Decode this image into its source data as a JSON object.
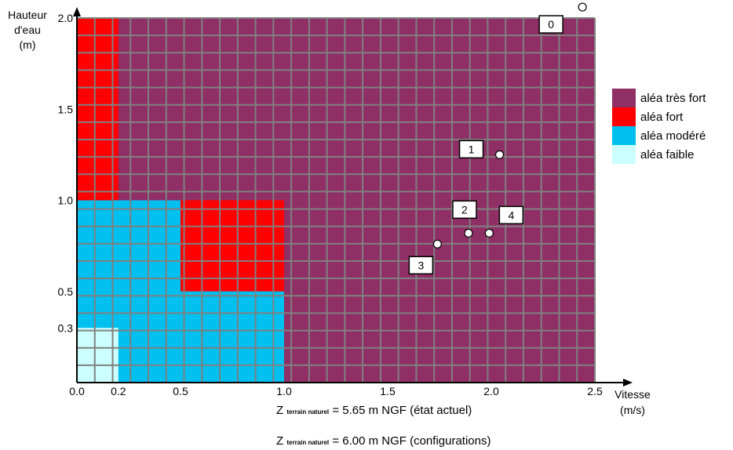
{
  "chart_data": {
    "type": "heatmap",
    "xlabel": "Vitesse\n(m/s)",
    "ylabel": "Hauteur\nd'eau\n(m)",
    "xlim": [
      0,
      2.5
    ],
    "ylim": [
      0,
      2.0
    ],
    "x_ticks": [
      "0.0",
      "0.2",
      "0.5",
      "1.0",
      "1.5",
      "2.0",
      "2.5"
    ],
    "x_tick_values": [
      0.0,
      0.2,
      0.5,
      1.0,
      1.5,
      2.0,
      2.5
    ],
    "y_ticks": [
      "0.3",
      "0.5",
      "1.0",
      "1.5",
      "2.0"
    ],
    "y_tick_values": [
      0.3,
      0.5,
      1.0,
      1.5,
      2.0
    ],
    "zones": [
      {
        "label": "aléa très fort",
        "color": "#8f2f66",
        "x": [
          0,
          2.5
        ],
        "y": [
          0,
          2.0
        ]
      },
      {
        "label": "aléa fort",
        "color": "#ff0000",
        "x": [
          0,
          0.2
        ],
        "y": [
          1.0,
          2.0
        ]
      },
      {
        "label": "aléa fort",
        "color": "#ff0000",
        "x": [
          0.5,
          1.0
        ],
        "y": [
          0.5,
          1.0
        ]
      },
      {
        "label": "aléa modéré",
        "color": "#00c0f0",
        "x": [
          0,
          0.5
        ],
        "y": [
          0,
          1.0
        ]
      },
      {
        "label": "aléa modéré",
        "color": "#00c0f0",
        "x": [
          0.5,
          1.0
        ],
        "y": [
          0,
          0.5
        ]
      },
      {
        "label": "aléa faible",
        "color": "#ccffff",
        "x": [
          0,
          0.2
        ],
        "y": [
          0,
          0.3
        ]
      }
    ],
    "legend": [
      {
        "label": "aléa très fort",
        "color": "#8f2f66"
      },
      {
        "label": "aléa fort",
        "color": "#ff0000"
      },
      {
        "label": "aléa modéré",
        "color": "#00c0f0"
      },
      {
        "label": "aléa faible",
        "color": "#ccffff"
      }
    ],
    "points": [
      {
        "label": "0",
        "x": 2.44,
        "y": 2.06
      },
      {
        "label": "1",
        "x": 2.04,
        "y": 1.25
      },
      {
        "label": "2",
        "x": 1.89,
        "y": 0.82
      },
      {
        "label": "4",
        "x": 1.99,
        "y": 0.82
      },
      {
        "label": "3",
        "x": 1.74,
        "y": 0.76
      }
    ],
    "grid": true,
    "legend_position": "right"
  },
  "footnotes": [
    {
      "prefix": "Z",
      "sub": "terrain naturel",
      "text": "= 5.65 m NGF (état actuel)"
    },
    {
      "prefix": "Z",
      "sub": "terrain naturel",
      "text": "= 6.00 m NGF (configurations)"
    }
  ]
}
